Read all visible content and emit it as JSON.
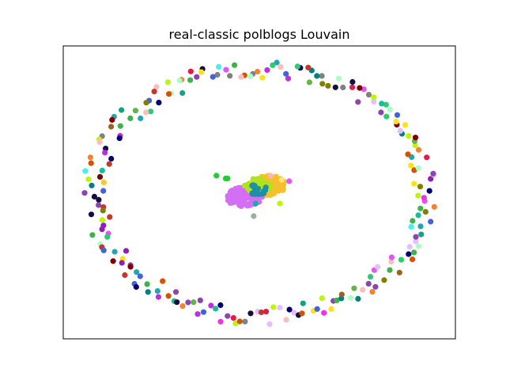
{
  "chart_data": {
    "type": "scatter",
    "title": "real-classic polblogs Louvain",
    "xlabel": "",
    "ylabel": "",
    "axes_visible": false,
    "grid": false,
    "legend": "none",
    "description_free": true,
    "xlim": [
      -1.05,
      1.05
    ],
    "ylim": [
      -1.05,
      1.05
    ],
    "node_colors": [
      "#e6194b",
      "#3cb44b",
      "#ffe119",
      "#4363d8",
      "#f58231",
      "#911eb4",
      "#46f0f0",
      "#f032e6",
      "#bcf60c",
      "#fabebe",
      "#008080",
      "#e6beff",
      "#9a6324",
      "#800000",
      "#aaffc3",
      "#808000",
      "#000075",
      "#808080",
      "#2ecc71",
      "#c0392b",
      "#8e44ad",
      "#16a085",
      "#d35400",
      "#1abc9c",
      "#e056fd",
      "#22a6b3",
      "#6ab04c",
      "#be2edd",
      "#f9ca24",
      "#130f40"
    ],
    "ring_nodes": 220,
    "core_clusters": [
      {
        "name": "c1",
        "color": "#d46ef5",
        "cx": -0.08,
        "cy": -0.03,
        "rx": 0.1,
        "ry": 0.07,
        "n": 140
      },
      {
        "name": "c2",
        "color": "#f5c02a",
        "cx": 0.05,
        "cy": 0.05,
        "rx": 0.09,
        "ry": 0.07,
        "n": 120
      },
      {
        "name": "c3",
        "color": "#b0e21f",
        "cx": -0.01,
        "cy": 0.05,
        "rx": 0.07,
        "ry": 0.05,
        "n": 60
      },
      {
        "name": "c4",
        "color": "#1f8fa6",
        "cx": -0.01,
        "cy": 0.02,
        "rx": 0.05,
        "ry": 0.04,
        "n": 20
      }
    ],
    "extra_points": [
      {
        "x": -0.23,
        "y": 0.12,
        "color": "#22cc33"
      },
      {
        "x": -0.18,
        "y": 0.1,
        "color": "#22cc33"
      },
      {
        "x": -0.17,
        "y": 0.1,
        "color": "#22cc33"
      },
      {
        "x": 0.16,
        "y": 0.08,
        "color": "#e056fd"
      },
      {
        "x": 0.12,
        "y": 0.09,
        "color": "#f9e37a"
      },
      {
        "x": 0.11,
        "y": -0.08,
        "color": "#bcf60c"
      },
      {
        "x": -0.03,
        "y": -0.17,
        "color": "#9ab0a0"
      },
      {
        "x": -0.02,
        "y": -0.08,
        "color": "#22a6b3"
      },
      {
        "x": 0.06,
        "y": 0.12,
        "color": "#ffb6c1"
      }
    ]
  }
}
